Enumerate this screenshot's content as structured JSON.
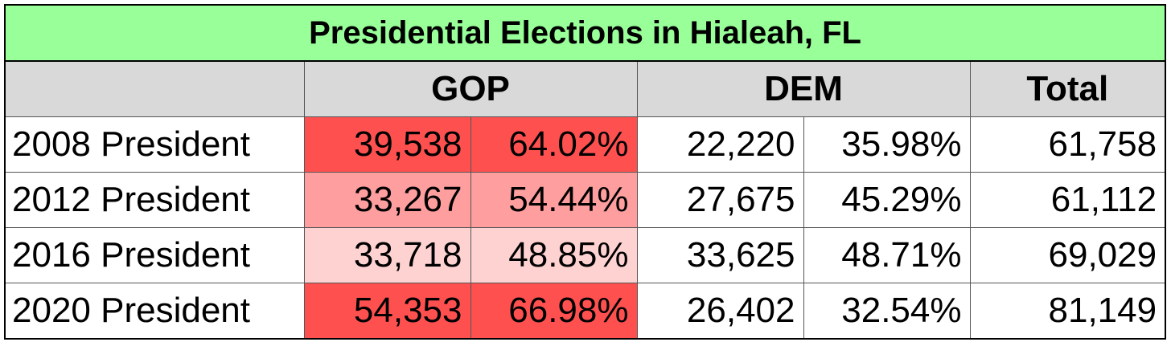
{
  "title": "Presidential Elections in Hialeah, FL",
  "headers": {
    "blank": "",
    "gop": "GOP",
    "dem": "DEM",
    "total": "Total"
  },
  "rows": [
    {
      "label": "2008 President",
      "gop_votes": "39,538",
      "gop_pct": "64.02%",
      "dem_votes": "22,220",
      "dem_pct": "35.98%",
      "total": "61,758",
      "gop_color": "#ff5050"
    },
    {
      "label": "2012 President",
      "gop_votes": "33,267",
      "gop_pct": "54.44%",
      "dem_votes": "27,675",
      "dem_pct": "45.29%",
      "total": "61,112",
      "gop_color": "#ff9e9e"
    },
    {
      "label": "2016 President",
      "gop_votes": "33,718",
      "gop_pct": "48.85%",
      "dem_votes": "33,625",
      "dem_pct": "48.71%",
      "total": "69,029",
      "gop_color": "#ffd2d2"
    },
    {
      "label": "2020 President",
      "gop_votes": "54,353",
      "gop_pct": "66.98%",
      "dem_votes": "26,402",
      "dem_pct": "32.54%",
      "total": "81,149",
      "gop_color": "#ff5050"
    }
  ]
}
